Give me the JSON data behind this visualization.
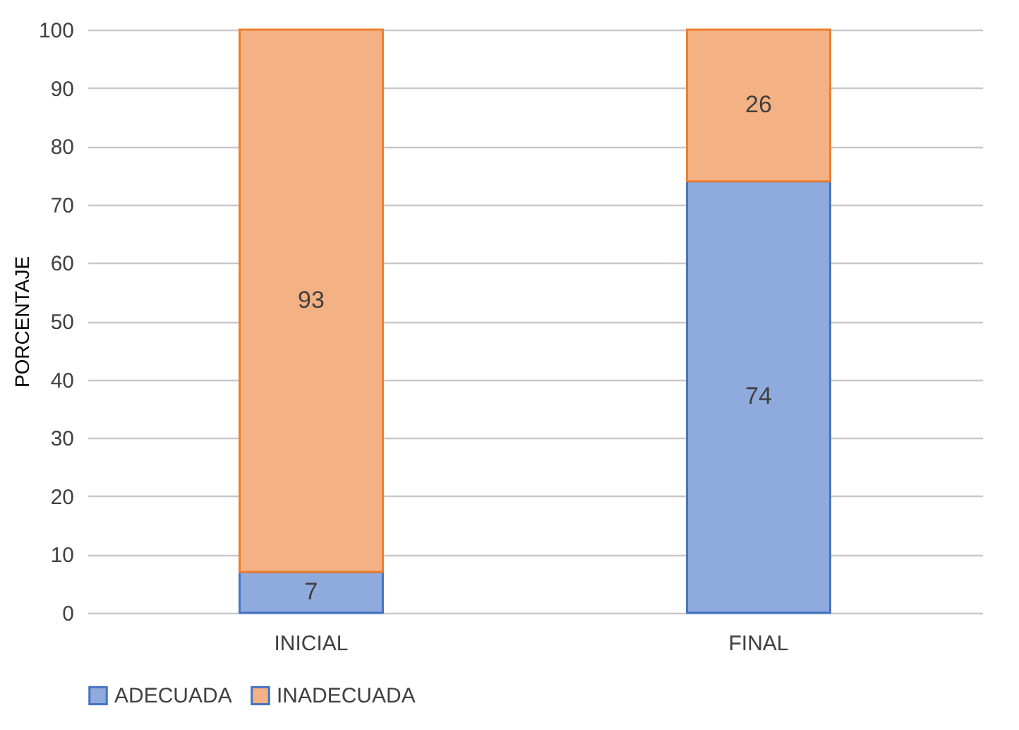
{
  "chart_data": {
    "type": "bar",
    "stacked": true,
    "categories": [
      "INICIAL",
      "FINAL"
    ],
    "ylabel": "PORCENTAJE",
    "ylim": [
      0,
      100
    ],
    "yticks": [
      0,
      10,
      20,
      30,
      40,
      50,
      60,
      70,
      80,
      90,
      100
    ],
    "grid": "y",
    "legend": "bottom",
    "data_labels": true,
    "series": [
      {
        "name": "ADECUADA",
        "color": "#8faadc",
        "values": [
          7,
          74
        ]
      },
      {
        "name": "INADECUADA",
        "color": "#f4b183",
        "values": [
          93,
          26
        ]
      }
    ]
  }
}
